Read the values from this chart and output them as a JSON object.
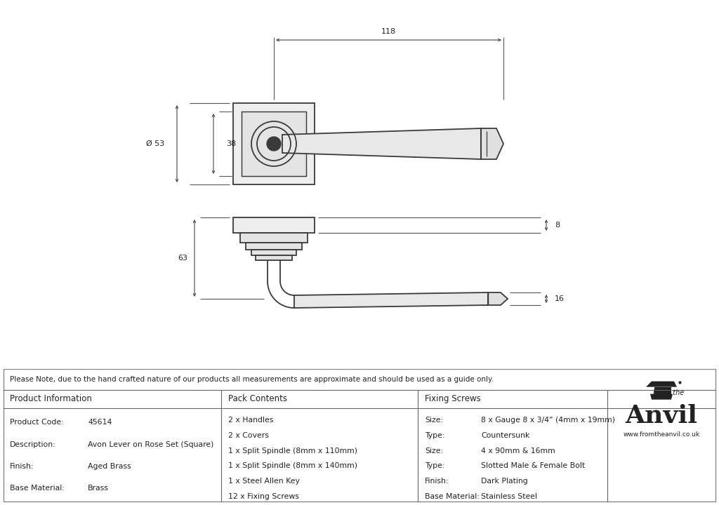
{
  "bg_color": "#ffffff",
  "line_color": "#3a3a3a",
  "text_color": "#222222",
  "note_text": "Please Note, due to the hand crafted nature of our products all measurements are approximate and should be used as a guide only.",
  "table_data": {
    "product_info_header": "Product Information",
    "product_code_label": "Product Code:",
    "product_code": "45614",
    "description_label": "Description:",
    "description": "Avon Lever on Rose Set (Square)",
    "finish_label": "Finish:",
    "finish": "Aged Brass",
    "base_material_label": "Base Material:",
    "base_material": "Brass",
    "pack_contents_header": "Pack Contents",
    "pack_items": [
      "2 x Handles",
      "2 x Covers",
      "1 x Split Spindle (8mm x 110mm)",
      "1 x Split Spindle (8mm x 140mm)",
      "1 x Steel Allen Key",
      "12 x Fixing Screws"
    ],
    "fixing_header": "Fixing Screws",
    "fixing_items": [
      [
        "Size:",
        "8 x Gauge 8 x 3/4” (4mm x 19mm)"
      ],
      [
        "Type:",
        "Countersunk"
      ],
      [
        "Size:",
        "4 x 90mm & 16mm"
      ],
      [
        "Type:",
        "Slotted Male & Female Bolt"
      ],
      [
        "Finish:",
        "Dark Plating"
      ],
      [
        "Base Material:",
        "Stainless Steel"
      ]
    ]
  },
  "dims": {
    "top_width": "118",
    "rose_diameter_label": "Ø 53",
    "inner_height": "38",
    "side_depth": "8",
    "lever_height": "63",
    "end_height": "16"
  }
}
